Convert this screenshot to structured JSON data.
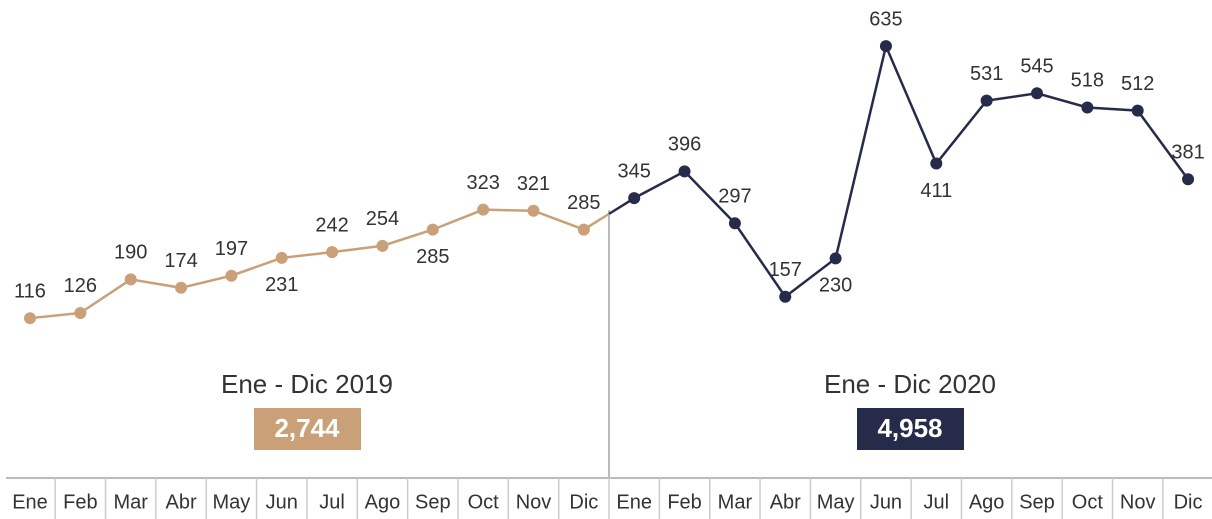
{
  "chart_data": {
    "type": "line",
    "categories": [
      "Ene",
      "Feb",
      "Mar",
      "Abr",
      "May",
      "Jun",
      "Jul",
      "Ago",
      "Sep",
      "Oct",
      "Nov",
      "Dic",
      "Ene",
      "Feb",
      "Mar",
      "Abr",
      "May",
      "Jun",
      "Jul",
      "Ago",
      "Sep",
      "Oct",
      "Nov",
      "Dic"
    ],
    "series": [
      {
        "color": "#c9a078",
        "values": [
          116,
          126,
          190,
          174,
          197,
          231,
          242,
          254,
          285,
          323,
          321,
          285,
          null,
          null,
          null,
          null,
          null,
          null,
          null,
          null,
          null,
          null,
          null,
          null
        ]
      },
      {
        "color": "#262b4a",
        "values": [
          null,
          null,
          null,
          null,
          null,
          null,
          null,
          null,
          null,
          null,
          null,
          null,
          345,
          396,
          297,
          157,
          230,
          635,
          411,
          531,
          545,
          518,
          512,
          381
        ]
      }
    ],
    "ylim": [
      0,
      723
    ],
    "annotations": [
      {
        "text": "Ene - Dic 2019",
        "total": 2744,
        "total_label": "2,744",
        "color": "#c9a078"
      },
      {
        "text": "Ene - Dic 2020",
        "total": 4958,
        "total_label": "4,958",
        "color": "#262b4a"
      }
    ]
  }
}
